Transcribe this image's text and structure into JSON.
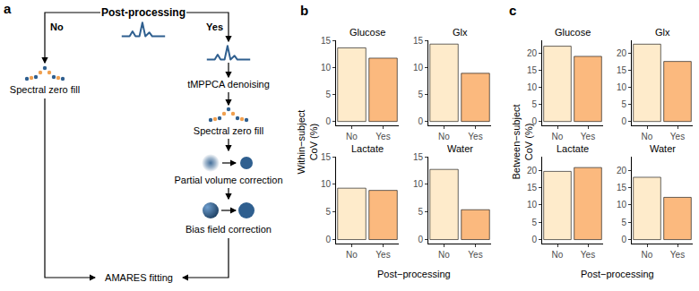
{
  "diagram": {
    "label": "a",
    "title": "Post-processing",
    "no": {
      "label": "No",
      "steps": [
        "Spectral zero fill"
      ]
    },
    "yes": {
      "label": "Yes",
      "steps": [
        "tMPPCA denoising",
        "Spectral zero fill",
        "Partial volume correction",
        "Bias field correction"
      ]
    },
    "end": "AMARES fitting"
  },
  "chart_data": [
    {
      "type": "bar",
      "label": "b",
      "y_label": "Within−subject\nCoV (%)",
      "x_label": "Post−processing",
      "categories": [
        "No",
        "Yes"
      ],
      "colors": [
        "#FEEBCB",
        "#FBB97E"
      ],
      "ylim": [
        -0.72,
        15.0
      ],
      "yticks": [
        0,
        5,
        10,
        15
      ],
      "facets": [
        {
          "title": "Glucose",
          "values": [
            13.6,
            11.7
          ]
        },
        {
          "title": "Glx",
          "values": [
            14.3,
            8.9
          ]
        },
        {
          "title": "Lactate",
          "values": [
            9.3,
            8.9
          ]
        },
        {
          "title": "Water",
          "values": [
            12.7,
            5.4
          ]
        }
      ]
    },
    {
      "type": "bar",
      "label": "c",
      "y_label": "Between−subject\nCoV (%)",
      "x_label": "Post−processing",
      "categories": [
        "No",
        "Yes"
      ],
      "colors": [
        "#FEEBCB",
        "#FBB97E"
      ],
      "ylim": [
        -1.14,
        23.94
      ],
      "yticks": [
        0,
        5,
        10,
        15,
        20
      ],
      "facets": [
        {
          "title": "Glucose",
          "values": [
            22.2,
            19.2
          ]
        },
        {
          "title": "Glx",
          "values": [
            22.8,
            17.7
          ]
        },
        {
          "title": "Lactate",
          "values": [
            19.7,
            20.8
          ]
        },
        {
          "title": "Water",
          "values": [
            18.0,
            12.2
          ]
        }
      ]
    }
  ]
}
